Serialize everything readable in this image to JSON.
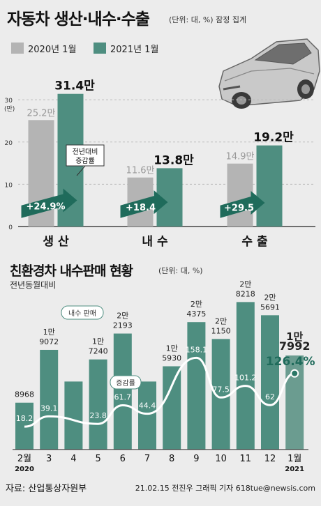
{
  "header": {
    "title": "자동차 생산·내수·수출",
    "unit": "(단위: 대, %) 잠정 집계",
    "legend": [
      {
        "label": "2020년 1월",
        "color": "#b4b4b4"
      },
      {
        "label": "2021년 1월",
        "color": "#4e8e80"
      }
    ]
  },
  "chart_data": [
    {
      "type": "bar",
      "title": "자동차 생산·내수·수출",
      "unit": "(단위: 대, %) 잠정 집계",
      "ylabel": "(만)",
      "ylim": [
        0,
        33
      ],
      "yticks": [
        0,
        10,
        20,
        30
      ],
      "categories": [
        "생 산",
        "내 수",
        "수 출"
      ],
      "series": [
        {
          "name": "2020년 1월",
          "values": [
            25.2,
            11.6,
            14.9
          ],
          "labels": [
            "25.2만",
            "11.6만",
            "14.9만"
          ],
          "color": "#b4b4b4"
        },
        {
          "name": "2021년 1월",
          "values": [
            31.4,
            13.8,
            19.2
          ],
          "labels": [
            "31.4만",
            "13.8만",
            "19.2만"
          ],
          "color": "#4e8e80"
        }
      ],
      "changes": [
        "+24.9%",
        "+18.4",
        "+29.5"
      ],
      "annotation": "전년대비 증감률",
      "grid": true
    },
    {
      "type": "bar",
      "title": "친환경차 내수판매 현황",
      "unit": "(단위: 대, %)",
      "subnote": "전년동월대비",
      "categories": [
        "2월",
        "3",
        "4",
        "5",
        "6",
        "7",
        "8",
        "9",
        "10",
        "11",
        "12",
        "1월"
      ],
      "year_labels": [
        {
          "index": 0,
          "label": "2020"
        },
        {
          "index": 11,
          "label": "2021"
        }
      ],
      "series": [
        {
          "name": "내수 판매",
          "values": [
            8968,
            19072,
            13012,
            17240,
            22193,
            13011,
            15930,
            24375,
            21150,
            28218,
            25691,
            17992
          ],
          "value_labels": [
            "8968",
            "1만\n9072",
            "",
            "1만\n7240",
            "2만\n2193",
            "",
            "1만\n5930",
            "2만\n4375",
            "2만\n1150",
            "2만\n8218",
            "2만\n5691",
            "1만\n7992"
          ]
        },
        {
          "name": "증감률",
          "type": "line",
          "values": [
            18.2,
            39.1,
            0,
            23.8,
            61.7,
            44.4,
            0,
            158.1,
            77.5,
            101.2,
            62,
            126.4
          ],
          "value_labels": [
            "18.2",
            "39.1",
            "",
            "23.8",
            "61.7",
            "44.4",
            "",
            "158.1",
            "77.5",
            "101.2",
            "62",
            "126.4%"
          ]
        }
      ],
      "series_labels": [
        "내수 판매",
        "증감률"
      ]
    }
  ],
  "footer": {
    "source": "자료: 산업통상자원부",
    "credit": "21.02.15  전진우  그래픽  기자  618tue@newsis.com"
  }
}
